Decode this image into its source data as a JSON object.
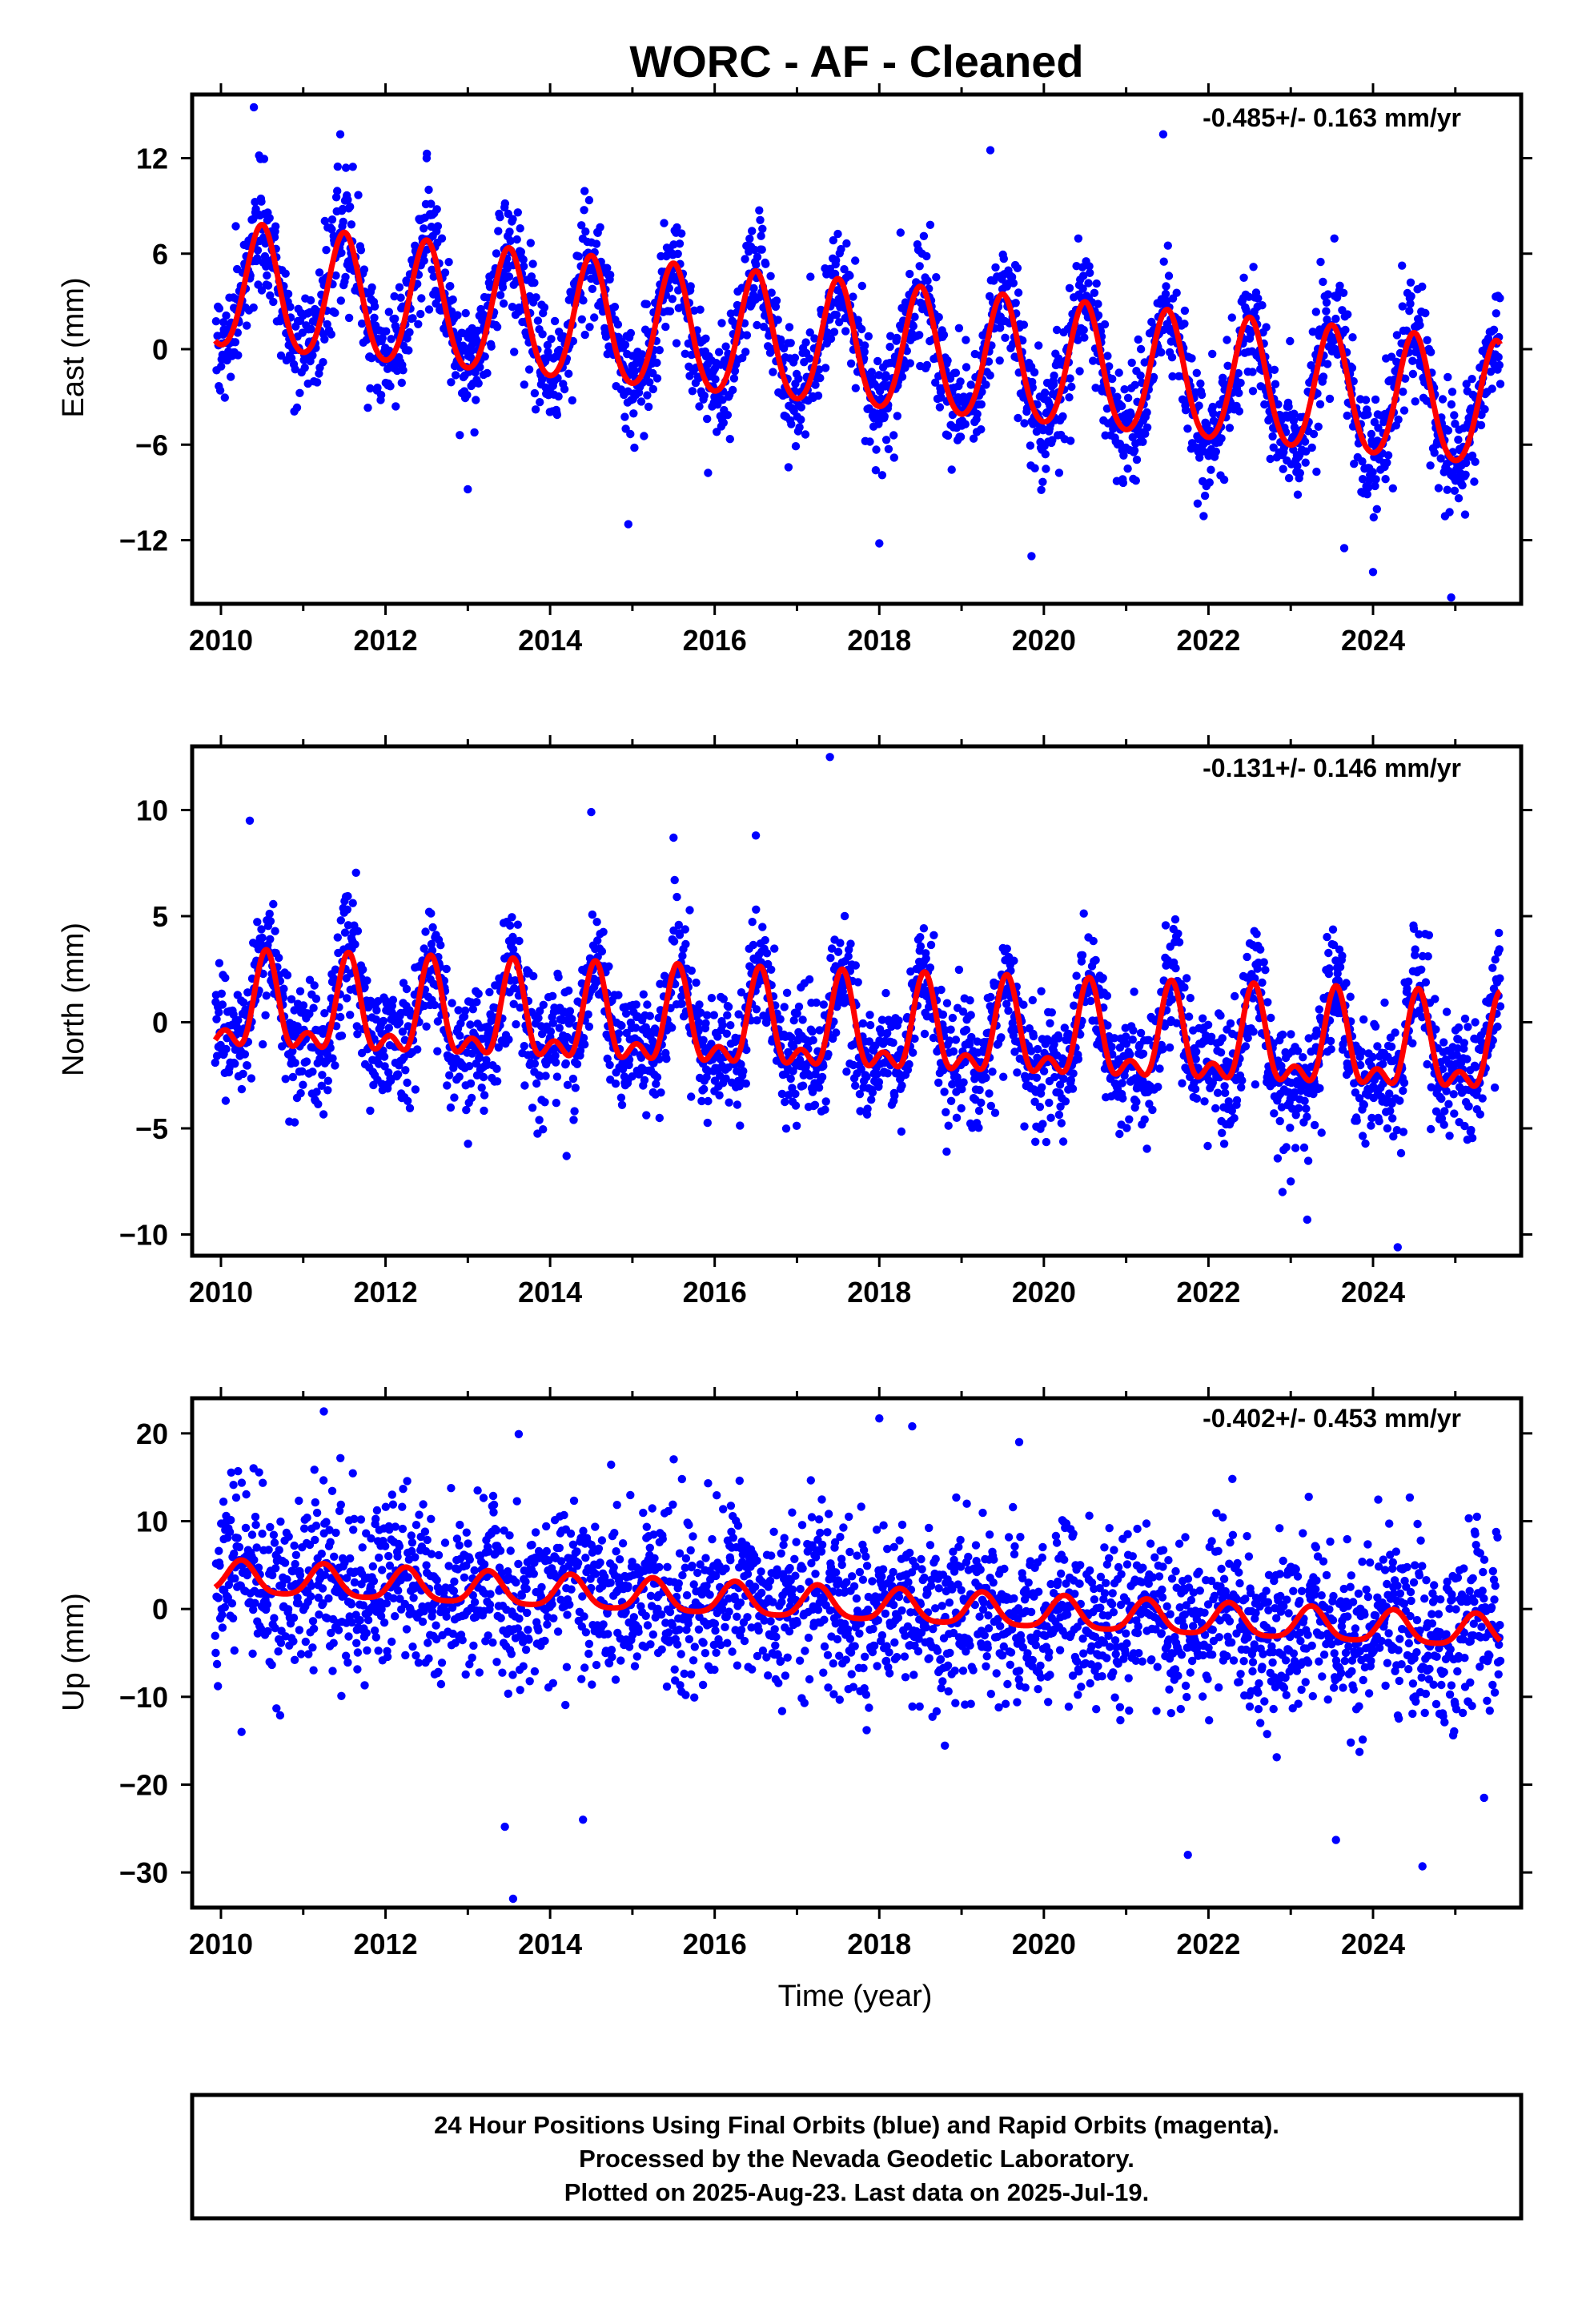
{
  "title": "WORC  - AF - Cleaned",
  "x_axis_label": "Time (year)",
  "footer": [
    "24 Hour Positions Using Final Orbits (blue) and Rapid Orbits (magenta).",
    "Processed by the Nevada Geodetic Laboratory.",
    "Plotted on 2025-Aug-23. Last data on 2025-Jul-19."
  ],
  "colors": {
    "points": "#0000ff",
    "model": "#ff0000",
    "axes": "#000000"
  },
  "chart_data": [
    {
      "type": "scatter",
      "ylabel": "East (mm)",
      "rate_text": "-0.485+/- 0.163 mm/yr",
      "xlim": [
        2009.65,
        2025.8
      ],
      "ylim": [
        -16,
        16
      ],
      "y_ticks": [
        12,
        6,
        0,
        -6,
        -12
      ],
      "x_ticks": [
        2010,
        2012,
        2014,
        2016,
        2018,
        2020,
        2022,
        2024
      ],
      "data_start": 2009.93,
      "data_end": 2025.55,
      "model": {
        "offset": 3.8,
        "trend_per_yr": -0.485,
        "seasonal_amplitude": 4.3,
        "peak_phase": 0.5,
        "skew": 0.3
      },
      "scatter_sd": 1.8,
      "outliers": [
        [
          2010.4,
          15.2
        ],
        [
          2011.45,
          13.5
        ],
        [
          2012.5,
          12.0
        ],
        [
          2019.35,
          12.5
        ],
        [
          2021.45,
          13.5
        ],
        [
          2018.0,
          -12.2
        ],
        [
          2019.85,
          -13.0
        ],
        [
          2023.65,
          -12.5
        ],
        [
          2024.0,
          -14.0
        ],
        [
          2024.95,
          -15.6
        ],
        [
          2014.95,
          -11.0
        ],
        [
          2013.0,
          -8.8
        ]
      ]
    },
    {
      "type": "scatter",
      "ylabel": "North (mm)",
      "rate_text": "-0.131+/- 0.146 mm/yr",
      "xlim": [
        2009.65,
        2025.8
      ],
      "ylim": [
        -11,
        13
      ],
      "y_ticks": [
        10,
        5,
        0,
        -5,
        -10
      ],
      "x_ticks": [
        2010,
        2012,
        2014,
        2016,
        2018,
        2020,
        2022,
        2024
      ],
      "data_start": 2009.93,
      "data_end": 2025.55,
      "model": {
        "offset": 0.5,
        "trend_per_yr": -0.131,
        "seasonal_amplitude": 3.0,
        "peak_phase": 0.55,
        "skew": 1.6
      },
      "scatter_sd": 1.4,
      "outliers": [
        [
          2010.35,
          9.5
        ],
        [
          2014.5,
          9.9
        ],
        [
          2017.4,
          12.5
        ],
        [
          2016.5,
          8.8
        ],
        [
          2015.5,
          8.7
        ],
        [
          2014.2,
          -6.3
        ],
        [
          2022.9,
          -8.0
        ],
        [
          2023.2,
          -9.3
        ],
        [
          2024.3,
          -10.6
        ],
        [
          2023.0,
          -7.5
        ]
      ]
    },
    {
      "type": "scatter",
      "ylabel": "Up (mm)",
      "rate_text": "-0.402+/- 0.453 mm/yr",
      "xlim": [
        2009.65,
        2025.8
      ],
      "ylim": [
        -34,
        24
      ],
      "y_ticks": [
        20,
        10,
        0,
        -10,
        -20,
        -30
      ],
      "x_ticks": [
        2010,
        2012,
        2014,
        2016,
        2018,
        2020,
        2022,
        2024
      ],
      "data_start": 2009.93,
      "data_end": 2025.55,
      "model": {
        "offset": 3.5,
        "trend_per_yr": -0.402,
        "seasonal_amplitude": 2.2,
        "peak_phase": 0.25,
        "skew": 0.6
      },
      "scatter_sd": 4.8,
      "outliers": [
        [
          2011.25,
          22.5
        ],
        [
          2018.0,
          21.7
        ],
        [
          2018.4,
          20.8
        ],
        [
          2019.7,
          19.0
        ],
        [
          2013.55,
          -33.0
        ],
        [
          2013.45,
          -24.8
        ],
        [
          2014.4,
          -24.0
        ],
        [
          2021.75,
          -28.0
        ],
        [
          2023.55,
          -26.3
        ],
        [
          2024.6,
          -29.3
        ],
        [
          2025.35,
          -21.5
        ],
        [
          2010.25,
          -14.0
        ]
      ]
    }
  ]
}
